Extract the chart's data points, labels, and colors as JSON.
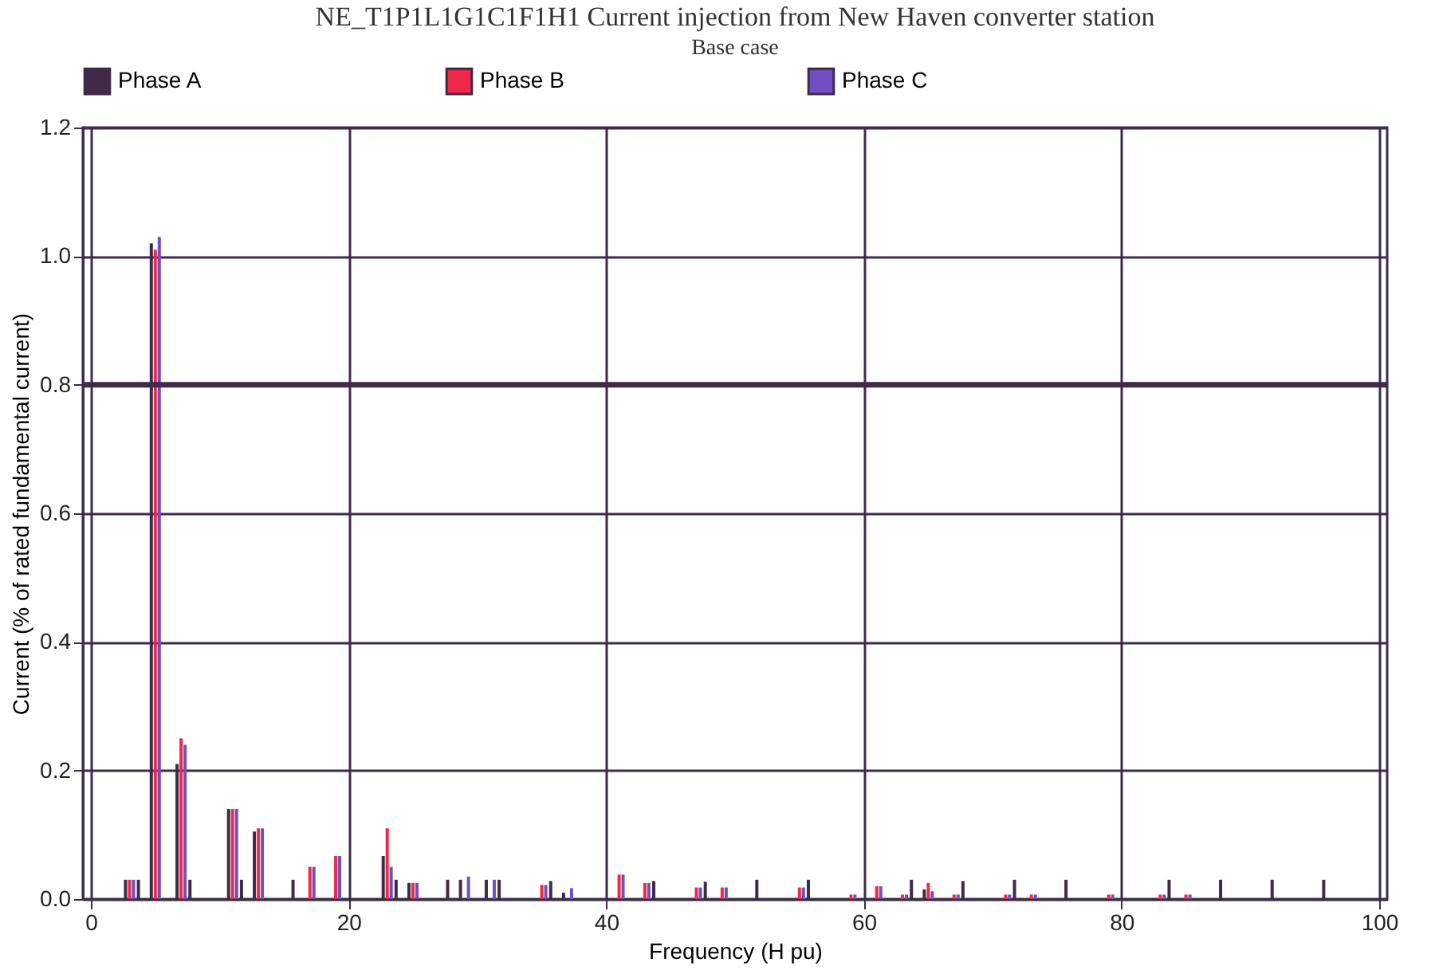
{
  "chart_data": {
    "type": "bar",
    "title": "NE_T1P1L1G1C1F1H1   Current injection from New Haven converter station",
    "subtitle": "Base case",
    "xlabel": "Frequency (H pu)",
    "ylabel": "Current (% of rated fundamental current)",
    "x": [
      3,
      4,
      5,
      7,
      8,
      11,
      12,
      13,
      16,
      17,
      19,
      23,
      24,
      25,
      28,
      29,
      31,
      32,
      35,
      36,
      37,
      41,
      43,
      44,
      47,
      48,
      49,
      52,
      55,
      56,
      59,
      61,
      63,
      64,
      65,
      67,
      68,
      71,
      72,
      73,
      76,
      79,
      83,
      84,
      85,
      88,
      92,
      96
    ],
    "series": [
      {
        "name": "Phase A",
        "color": "#3f2a48",
        "values": [
          0.03,
          0.03,
          1.02,
          0.21,
          0.03,
          0.14,
          0.03,
          0.105,
          0.03,
          null,
          null,
          0.067,
          0.03,
          0.025,
          0.03,
          0.03,
          0.03,
          0.03,
          null,
          0.028,
          0.01,
          null,
          null,
          0.028,
          null,
          0.027,
          null,
          0.03,
          null,
          0.03,
          null,
          null,
          null,
          0.03,
          0.015,
          null,
          0.028,
          null,
          0.03,
          null,
          0.03,
          null,
          null,
          0.03,
          null,
          0.03,
          0.03,
          0.03
        ]
      },
      {
        "name": "Phase B",
        "color": "#f0284a",
        "values": [
          0.03,
          null,
          1.01,
          0.25,
          null,
          0.14,
          null,
          0.11,
          null,
          0.05,
          0.067,
          0.11,
          null,
          0.025,
          null,
          null,
          null,
          null,
          0.022,
          null,
          null,
          0.038,
          0.025,
          null,
          0.018,
          null,
          0.018,
          null,
          0.018,
          null,
          0.007,
          0.02,
          0.007,
          null,
          0.025,
          0.007,
          null,
          0.007,
          null,
          0.007,
          null,
          0.007,
          0.007,
          null,
          0.007,
          null,
          null,
          null
        ]
      },
      {
        "name": "Phase C",
        "color": "#7050c0",
        "values": [
          0.03,
          null,
          1.03,
          0.24,
          null,
          0.14,
          null,
          0.11,
          null,
          0.05,
          0.067,
          0.05,
          null,
          0.025,
          null,
          0.035,
          0.03,
          null,
          0.022,
          null,
          0.017,
          0.038,
          0.025,
          null,
          0.018,
          null,
          0.018,
          null,
          0.018,
          null,
          0.007,
          0.02,
          0.007,
          null,
          0.012,
          0.007,
          null,
          0.007,
          null,
          0.007,
          null,
          0.007,
          0.007,
          null,
          0.007,
          null,
          null,
          null
        ]
      }
    ],
    "xlim": [
      0,
      100
    ],
    "xticks": [
      0,
      20,
      40,
      60,
      80,
      100
    ],
    "ylim": [
      0,
      1.2
    ],
    "yticks": [
      {
        "value": 0,
        "label": "0.0"
      },
      0.2,
      0.4,
      0.6,
      0.8,
      {
        "value": 1,
        "label": "1.0"
      },
      1.2
    ],
    "ref_lines": [
      {
        "axis": "y",
        "value": 0.8,
        "color": "#3f2a48"
      }
    ],
    "grid": true,
    "legend": "top"
  }
}
